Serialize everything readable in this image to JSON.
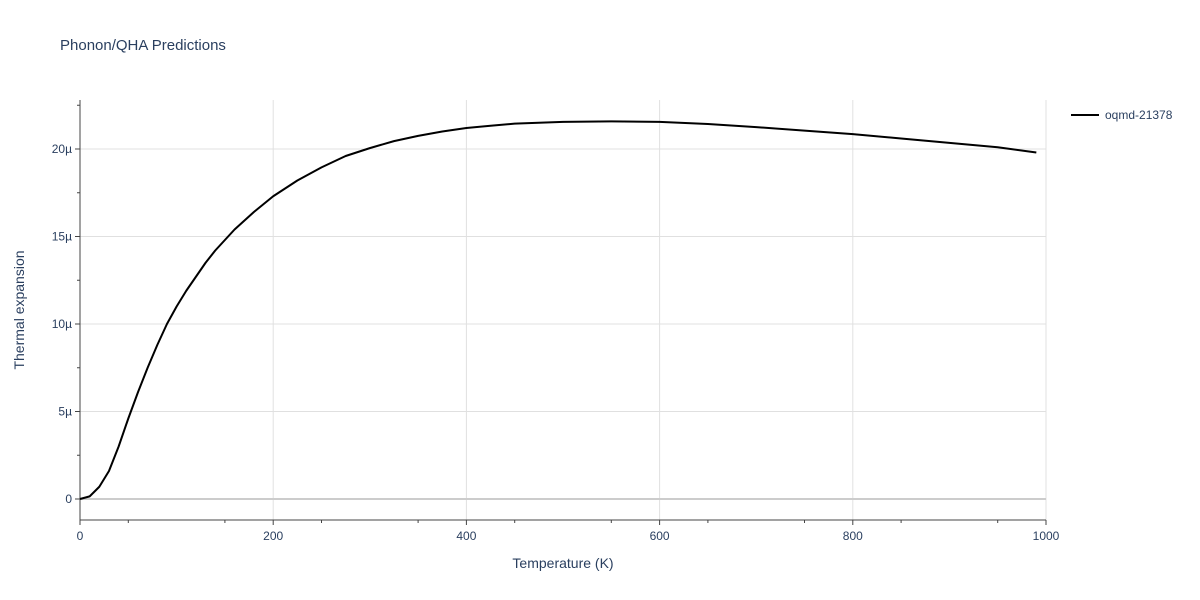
{
  "chart_data": {
    "type": "line",
    "title": "Phonon/QHA Predictions",
    "xlabel": "Temperature (K)",
    "ylabel": "Thermal expansion",
    "xlim": [
      0,
      1000
    ],
    "ylim": [
      -1.2e-06,
      2.28e-05
    ],
    "x_ticks": [
      {
        "value": 0,
        "label": "0"
      },
      {
        "value": 200,
        "label": "200"
      },
      {
        "value": 400,
        "label": "400"
      },
      {
        "value": 600,
        "label": "600"
      },
      {
        "value": 800,
        "label": "800"
      },
      {
        "value": 1000,
        "label": "1000"
      }
    ],
    "y_ticks": [
      {
        "value": 0,
        "label": "0"
      },
      {
        "value": 5e-06,
        "label": "5µ"
      },
      {
        "value": 1e-05,
        "label": "10µ"
      },
      {
        "value": 1.5e-05,
        "label": "15µ"
      },
      {
        "value": 2e-05,
        "label": "20µ"
      }
    ],
    "grid": true,
    "legend_position": "top-right",
    "series": [
      {
        "name": "oqmd-21378",
        "color": "#000000",
        "x": [
          0,
          10,
          20,
          30,
          40,
          50,
          60,
          70,
          80,
          90,
          100,
          110,
          120,
          130,
          140,
          150,
          160,
          170,
          180,
          190,
          200,
          225,
          250,
          275,
          300,
          325,
          350,
          375,
          400,
          425,
          450,
          475,
          500,
          550,
          600,
          650,
          700,
          750,
          800,
          850,
          900,
          950,
          990
        ],
        "y": [
          0,
          1.5e-07,
          7e-07,
          1.6e-06,
          3e-06,
          4.6e-06,
          6.1e-06,
          7.5e-06,
          8.8e-06,
          1e-05,
          1.1e-05,
          1.19e-05,
          1.27e-05,
          1.35e-05,
          1.42e-05,
          1.48e-05,
          1.54e-05,
          1.59e-05,
          1.64e-05,
          1.685e-05,
          1.73e-05,
          1.82e-05,
          1.895e-05,
          1.96e-05,
          2.005e-05,
          2.045e-05,
          2.075e-05,
          2.1e-05,
          2.12e-05,
          2.133e-05,
          2.145e-05,
          2.15e-05,
          2.155e-05,
          2.158e-05,
          2.155e-05,
          2.143e-05,
          2.125e-05,
          2.105e-05,
          2.085e-05,
          2.06e-05,
          2.035e-05,
          2.01e-05,
          1.98e-05
        ]
      }
    ]
  }
}
